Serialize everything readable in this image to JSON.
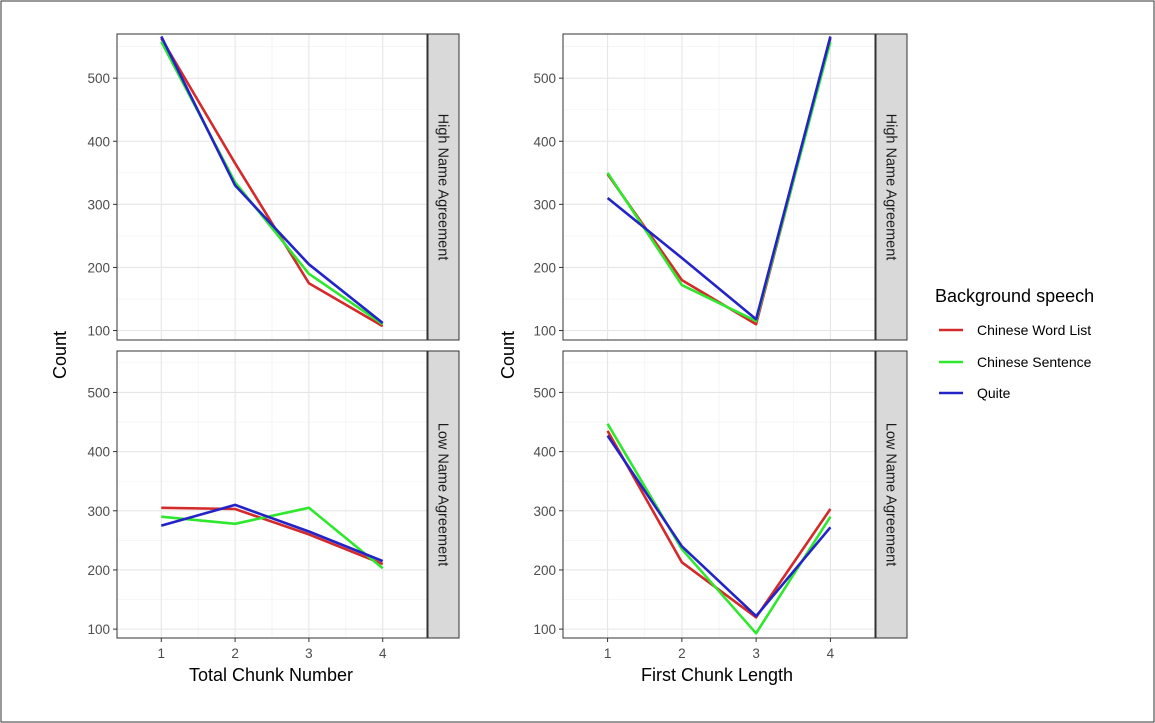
{
  "chart_data": [
    {
      "type": "line",
      "xlabel": "Total Chunk Number",
      "ylabel": "Count",
      "x": [
        1,
        2,
        3,
        4
      ],
      "ylim": [
        85,
        570
      ],
      "yticks": [
        100,
        200,
        300,
        400,
        500
      ],
      "grid": true,
      "facets": [
        {
          "strip_label": "High Name Agreement",
          "series": [
            {
              "name": "Chinese Word List",
              "values": [
                563,
                365,
                175,
                107
              ]
            },
            {
              "name": "Chinese Sentence",
              "values": [
                558,
                335,
                190,
                110
              ]
            },
            {
              "name": "Quite",
              "values": [
                566,
                330,
                205,
                112
              ]
            }
          ]
        },
        {
          "strip_label": "Low Name Agreement",
          "series": [
            {
              "name": "Chinese Word List",
              "values": [
                305,
                303,
                260,
                210
              ]
            },
            {
              "name": "Chinese Sentence",
              "values": [
                290,
                278,
                305,
                203
              ]
            },
            {
              "name": "Quite",
              "values": [
                275,
                310,
                265,
                215
              ]
            }
          ]
        }
      ]
    },
    {
      "type": "line",
      "xlabel": "First Chunk Length",
      "ylabel": "Count",
      "x": [
        1,
        2,
        3,
        4
      ],
      "ylim": [
        85,
        570
      ],
      "yticks": [
        100,
        200,
        300,
        400,
        500
      ],
      "grid": true,
      "facets": [
        {
          "strip_label": "High Name Agreement",
          "series": [
            {
              "name": "Chinese Word List",
              "values": [
                348,
                180,
                110,
                563
              ]
            },
            {
              "name": "Chinese Sentence",
              "values": [
                350,
                172,
                115,
                558
              ]
            },
            {
              "name": "Quite",
              "values": [
                310,
                215,
                118,
                566
              ]
            }
          ]
        },
        {
          "strip_label": "Low Name Agreement",
          "series": [
            {
              "name": "Chinese Word List",
              "values": [
                435,
                213,
                120,
                303
              ]
            },
            {
              "name": "Chinese Sentence",
              "values": [
                447,
                235,
                93,
                290
              ]
            },
            {
              "name": "Quite",
              "values": [
                427,
                240,
                122,
                272
              ]
            }
          ]
        }
      ]
    }
  ],
  "legend": {
    "title": "Background speech",
    "position": "right",
    "entries": [
      {
        "label": "Chinese Word List",
        "color": "#d32a2a"
      },
      {
        "label": "Chinese Sentence",
        "color": "#2ee82e"
      },
      {
        "label": "Quite",
        "color": "#2323c8"
      }
    ]
  }
}
